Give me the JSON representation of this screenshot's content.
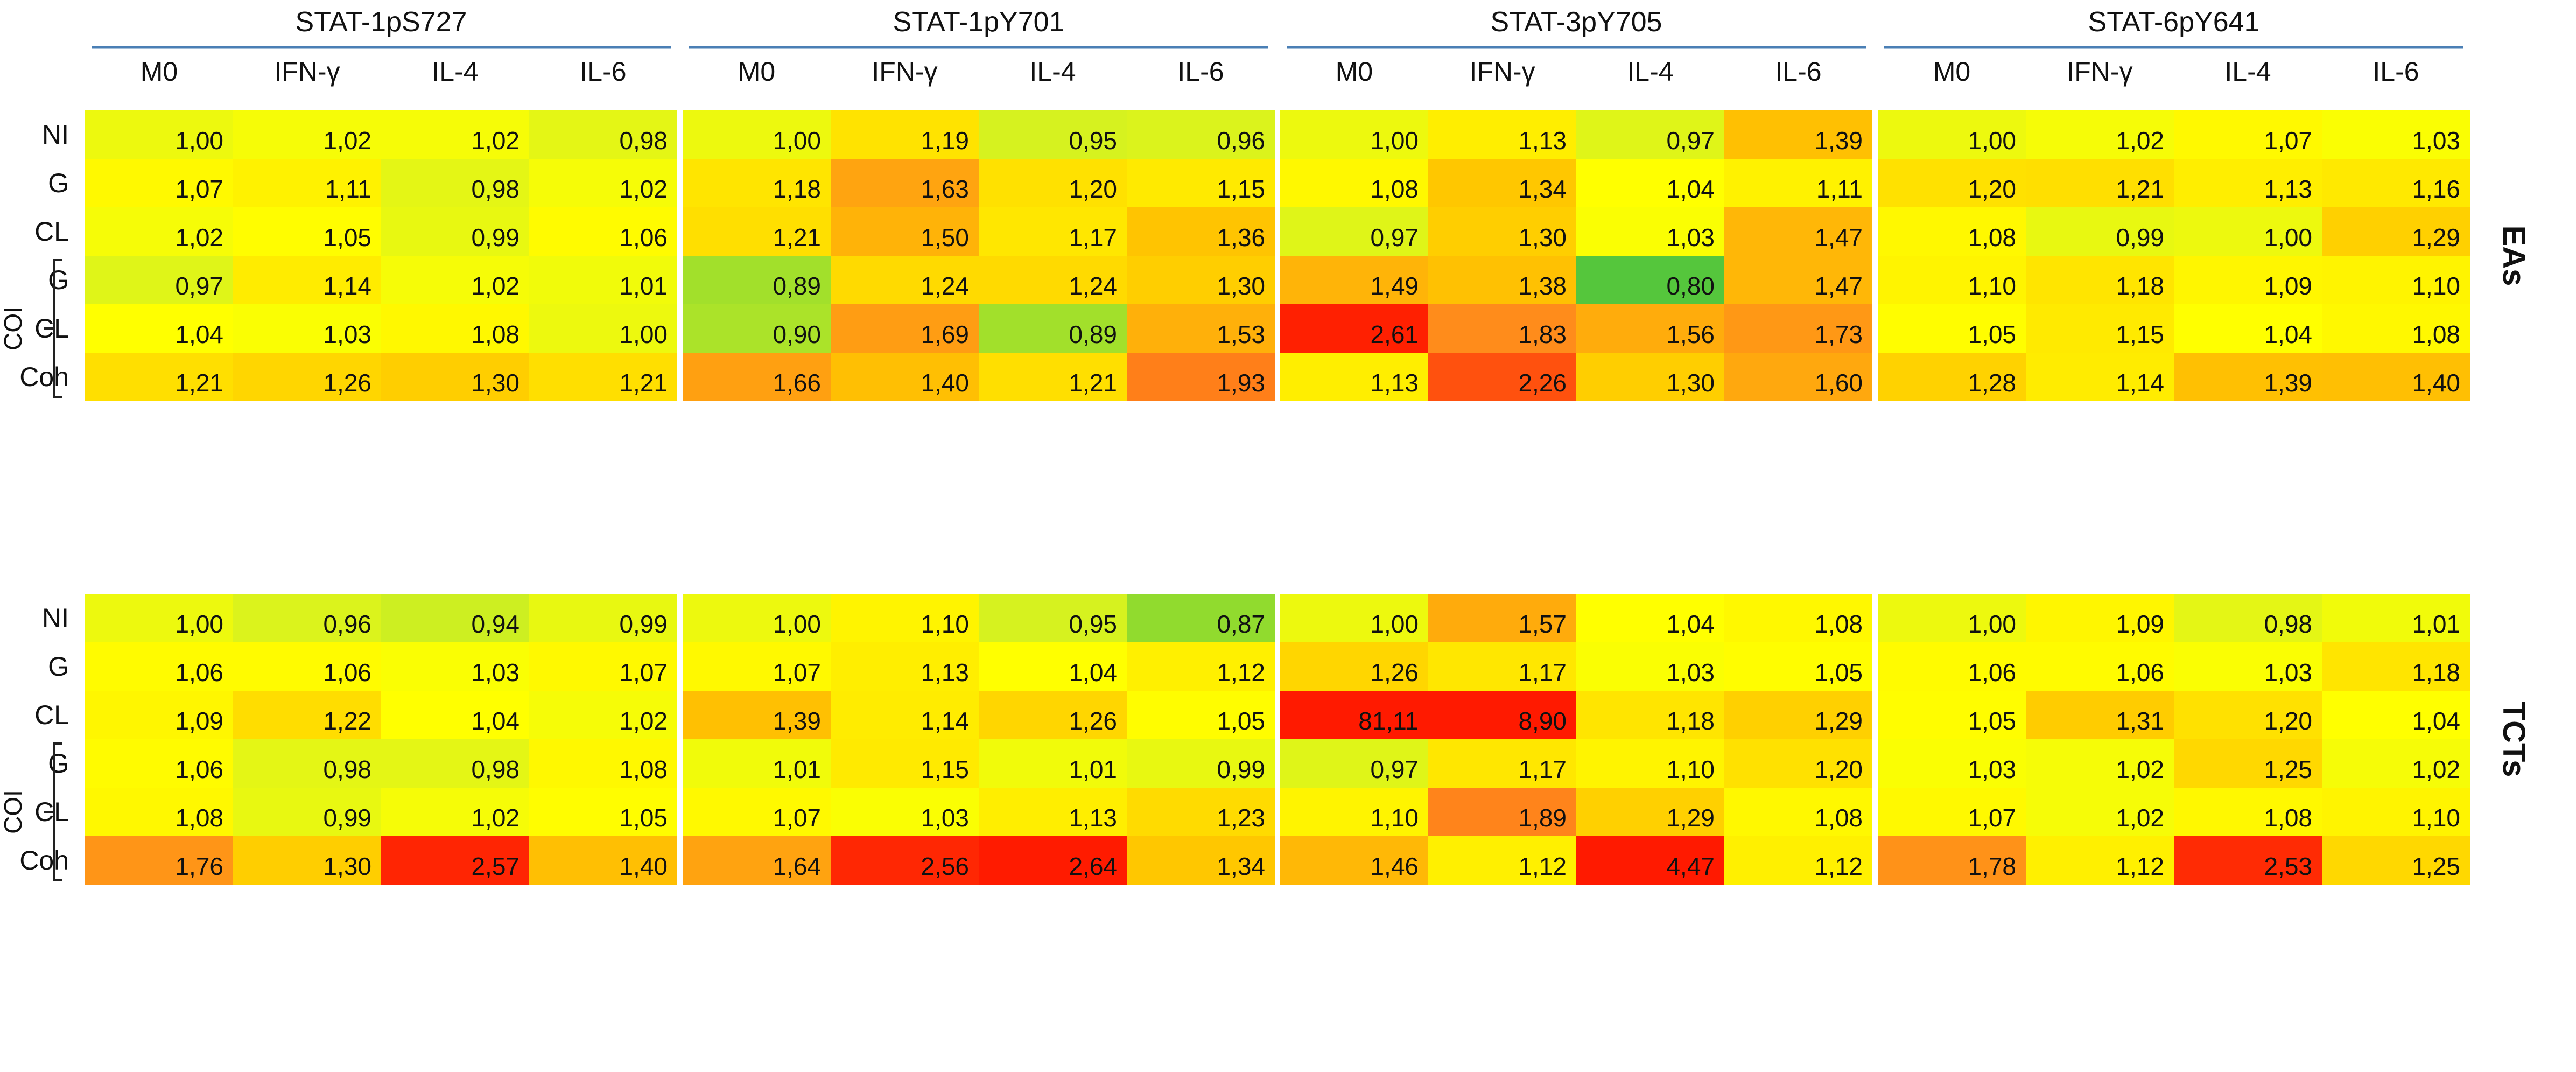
{
  "chart_data": {
    "type": "heatmap",
    "title": "",
    "xlabel": "",
    "ylabel": "",
    "column_groups": [
      "STAT-1pS727",
      "STAT-1pY701",
      "STAT-3pY705",
      "STAT-6pY641"
    ],
    "columns": [
      "M0",
      "IFN-γ",
      "IL-4",
      "IL-6"
    ],
    "row_labels": [
      "NI",
      "G",
      "CL",
      "G",
      "CL",
      "Coh"
    ],
    "row_group_label": "COI",
    "row_group_members": [
      3,
      4,
      5
    ],
    "color_scale": {
      "low": "#55c63c",
      "mid_low": "#d6f21f",
      "mid": "#ffff00",
      "mid_high": "#ffc500",
      "high": "#ff8a1c",
      "max": "#ff1a00"
    },
    "sections": [
      {
        "name": "EAs",
        "values": [
          [
            1.0,
            1.02,
            1.02,
            0.98,
            1.0,
            1.19,
            0.95,
            0.96,
            1.0,
            1.13,
            0.97,
            1.39,
            1.0,
            1.02,
            1.07,
            1.03
          ],
          [
            1.07,
            1.11,
            0.98,
            1.02,
            1.18,
            1.63,
            1.2,
            1.15,
            1.08,
            1.34,
            1.04,
            1.11,
            1.2,
            1.21,
            1.13,
            1.16
          ],
          [
            1.02,
            1.05,
            0.99,
            1.06,
            1.21,
            1.5,
            1.17,
            1.36,
            0.97,
            1.3,
            1.03,
            1.47,
            1.08,
            0.99,
            1.0,
            1.29
          ],
          [
            0.97,
            1.14,
            1.02,
            1.01,
            0.89,
            1.24,
            1.24,
            1.3,
            1.49,
            1.38,
            0.8,
            1.47,
            1.1,
            1.18,
            1.09,
            1.1
          ],
          [
            1.04,
            1.03,
            1.08,
            1.0,
            0.9,
            1.69,
            0.89,
            1.53,
            2.61,
            1.83,
            1.56,
            1.73,
            1.05,
            1.15,
            1.04,
            1.08
          ],
          [
            1.21,
            1.26,
            1.3,
            1.21,
            1.66,
            1.4,
            1.21,
            1.93,
            1.13,
            2.26,
            1.3,
            1.6,
            1.28,
            1.14,
            1.39,
            1.4
          ]
        ],
        "labels": [
          [
            "1,00",
            "1,02",
            "1,02",
            "0,98",
            "1,00",
            "1,19",
            "0,95",
            "0,96",
            "1,00",
            "1,13",
            "0,97",
            "1,39",
            "1,00",
            "1,02",
            "1,07",
            "1,03"
          ],
          [
            "1,07",
            "1,11",
            "0,98",
            "1,02",
            "1,18",
            "1,63",
            "1,20",
            "1,15",
            "1,08",
            "1,34",
            "1,04",
            "1,11",
            "1,20",
            "1,21",
            "1,13",
            "1,16"
          ],
          [
            "1,02",
            "1,05",
            "0,99",
            "1,06",
            "1,21",
            "1,50",
            "1,17",
            "1,36",
            "0,97",
            "1,30",
            "1,03",
            "1,47",
            "1,08",
            "0,99",
            "1,00",
            "1,29"
          ],
          [
            "0,97",
            "1,14",
            "1,02",
            "1,01",
            "0,89",
            "1,24",
            "1,24",
            "1,30",
            "1,49",
            "1,38",
            "0,80",
            "1,47",
            "1,10",
            "1,18",
            "1,09",
            "1,10"
          ],
          [
            "1,04",
            "1,03",
            "1,08",
            "1,00",
            "0,90",
            "1,69",
            "0,89",
            "1,53",
            "2,61",
            "1,83",
            "1,56",
            "1,73",
            "1,05",
            "1,15",
            "1,04",
            "1,08"
          ],
          [
            "1,21",
            "1,26",
            "1,30",
            "1,21",
            "1,66",
            "1,40",
            "1,21",
            "1,93",
            "1,13",
            "2,26",
            "1,30",
            "1,60",
            "1,28",
            "1,14",
            "1,39",
            "1,40"
          ]
        ]
      },
      {
        "name": "TCTs",
        "values": [
          [
            1.0,
            0.96,
            0.94,
            0.99,
            1.0,
            1.1,
            0.95,
            0.87,
            1.0,
            1.57,
            1.04,
            1.08,
            1.0,
            1.09,
            0.98,
            1.01
          ],
          [
            1.06,
            1.06,
            1.03,
            1.07,
            1.07,
            1.13,
            1.04,
            1.12,
            1.26,
            1.17,
            1.03,
            1.05,
            1.06,
            1.06,
            1.03,
            1.18
          ],
          [
            1.09,
            1.22,
            1.04,
            1.02,
            1.39,
            1.14,
            1.26,
            1.05,
            81.11,
            8.9,
            1.18,
            1.29,
            1.05,
            1.31,
            1.2,
            1.04
          ],
          [
            1.06,
            0.98,
            0.98,
            1.08,
            1.01,
            1.15,
            1.01,
            0.99,
            0.97,
            1.17,
            1.1,
            1.2,
            1.03,
            1.02,
            1.25,
            1.02
          ],
          [
            1.08,
            0.99,
            1.02,
            1.05,
            1.07,
            1.03,
            1.13,
            1.23,
            1.1,
            1.89,
            1.29,
            1.08,
            1.07,
            1.02,
            1.08,
            1.1
          ],
          [
            1.76,
            1.3,
            2.57,
            1.4,
            1.64,
            2.56,
            2.64,
            1.34,
            1.46,
            1.12,
            4.47,
            1.12,
            1.78,
            1.12,
            2.53,
            1.25
          ]
        ],
        "labels": [
          [
            "1,00",
            "0,96",
            "0,94",
            "0,99",
            "1,00",
            "1,10",
            "0,95",
            "0,87",
            "1,00",
            "1,57",
            "1,04",
            "1,08",
            "1,00",
            "1,09",
            "0,98",
            "1,01"
          ],
          [
            "1,06",
            "1,06",
            "1,03",
            "1,07",
            "1,07",
            "1,13",
            "1,04",
            "1,12",
            "1,26",
            "1,17",
            "1,03",
            "1,05",
            "1,06",
            "1,06",
            "1,03",
            "1,18"
          ],
          [
            "1,09",
            "1,22",
            "1,04",
            "1,02",
            "1,39",
            "1,14",
            "1,26",
            "1,05",
            "81,11",
            "8,90",
            "1,18",
            "1,29",
            "1,05",
            "1,31",
            "1,20",
            "1,04"
          ],
          [
            "1,06",
            "0,98",
            "0,98",
            "1,08",
            "1,01",
            "1,15",
            "1,01",
            "0,99",
            "0,97",
            "1,17",
            "1,10",
            "1,20",
            "1,03",
            "1,02",
            "1,25",
            "1,02"
          ],
          [
            "1,08",
            "0,99",
            "1,02",
            "1,05",
            "1,07",
            "1,03",
            "1,13",
            "1,23",
            "1,10",
            "1,89",
            "1,29",
            "1,08",
            "1,07",
            "1,02",
            "1,08",
            "1,10"
          ],
          [
            "1,76",
            "1,30",
            "2,57",
            "1,40",
            "1,64",
            "2,56",
            "2,64",
            "1,34",
            "1,46",
            "1,12",
            "4,47",
            "1,12",
            "1,78",
            "1,12",
            "2,53",
            "1,25"
          ]
        ]
      }
    ],
    "grid": false,
    "legend": "none"
  }
}
